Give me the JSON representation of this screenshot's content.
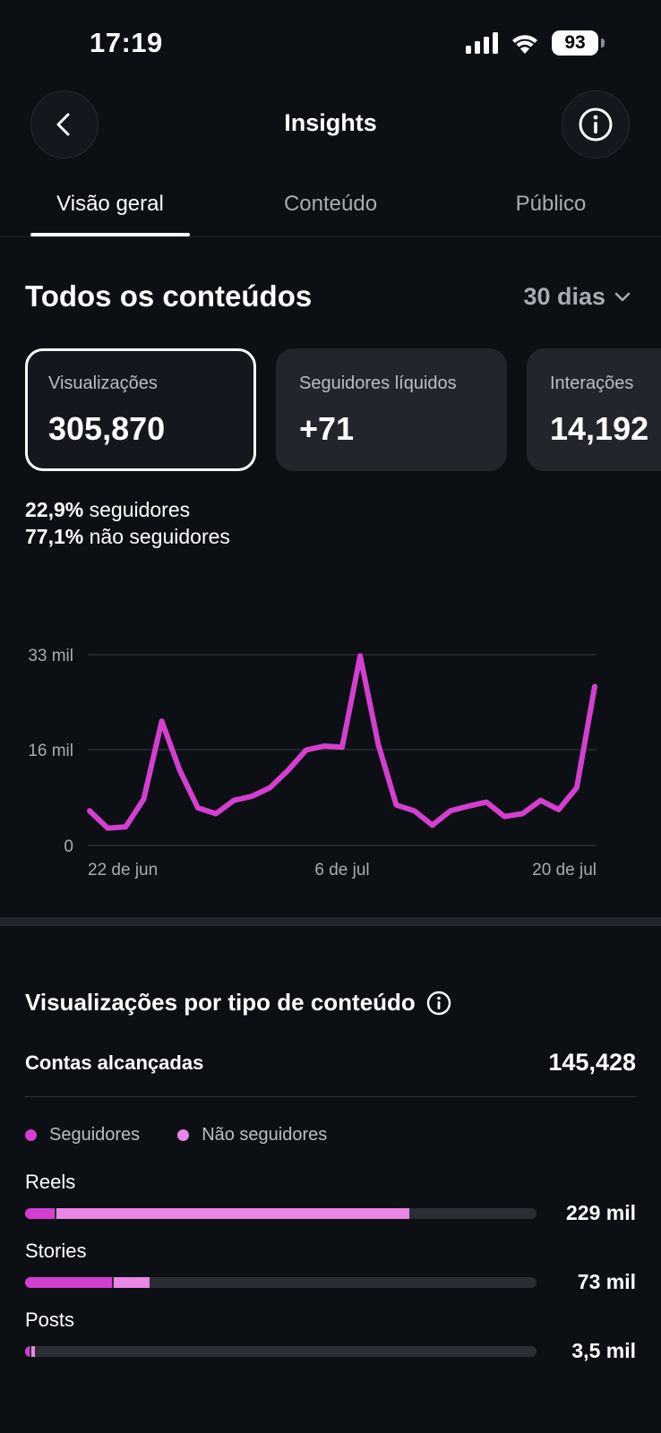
{
  "status_bar": {
    "time": "17:19",
    "battery": "93"
  },
  "header": {
    "title": "Insights",
    "back_icon": "chevron-left-icon",
    "info_icon": "info-icon"
  },
  "tabs": [
    {
      "label": "Visão geral",
      "active": true
    },
    {
      "label": "Conteúdo",
      "active": false
    },
    {
      "label": "Público",
      "active": false
    }
  ],
  "section": {
    "title": "Todos os conteúdos",
    "range": "30 dias"
  },
  "metrics": [
    {
      "label": "Visualizações",
      "value": "305,870",
      "selected": true
    },
    {
      "label": "Seguidores líquidos",
      "value": "+71",
      "selected": false
    },
    {
      "label": "Interações",
      "value": "14,192",
      "selected": false
    }
  ],
  "breakdown": [
    {
      "percent": "22,9%",
      "label": "seguidores"
    },
    {
      "percent": "77,1%",
      "label": "não seguidores"
    }
  ],
  "colors": {
    "accent": "#d43fcf",
    "accent_light": "#ea86e6",
    "background": "#0c0f14"
  },
  "chart_data": {
    "type": "line",
    "y_ticks": [
      "33 mil",
      "16 mil",
      "0"
    ],
    "x_ticks": [
      "22 de jun",
      "6 de jul",
      "20 de jul"
    ],
    "ylim": [
      0,
      33000
    ],
    "series": [
      {
        "values": [
          6000,
          3000,
          3200,
          8000,
          21500,
          13000,
          6500,
          5500,
          7800,
          8500,
          10000,
          13000,
          16500,
          17200,
          17000,
          32800,
          17500,
          7000,
          6000,
          3500,
          6000,
          6800,
          7500,
          5000,
          5500,
          7800,
          6200,
          10000,
          27500
        ]
      }
    ]
  },
  "views_by_type": {
    "title": "Visualizações por tipo de conteúdo",
    "accounts_label": "Contas alcançadas",
    "accounts_value": "145,428",
    "legend": [
      "Seguidores",
      "Não seguidores"
    ],
    "rows": [
      {
        "label": "Reels",
        "value": "229 mil",
        "followers_fraction": 0.057,
        "nonfollowers_fraction": 0.69
      },
      {
        "label": "Stories",
        "value": "73 mil",
        "followers_fraction": 0.17,
        "nonfollowers_fraction": 0.07
      },
      {
        "label": "Posts",
        "value": "3,5 mil",
        "followers_fraction": 0.008,
        "nonfollowers_fraction": 0.008
      }
    ]
  }
}
